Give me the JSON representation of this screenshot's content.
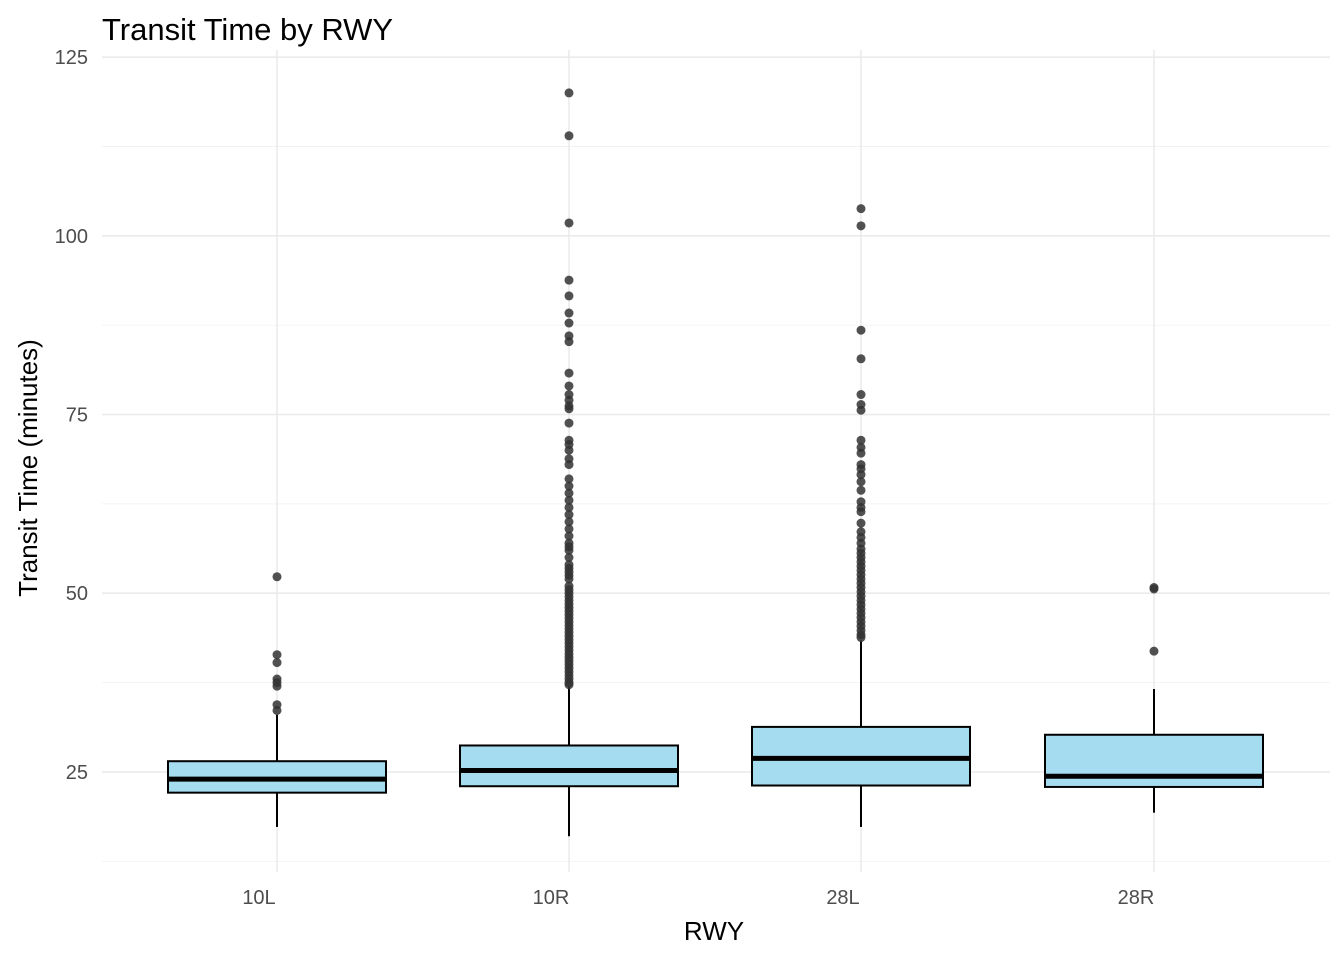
{
  "chart_data": {
    "type": "box",
    "title": "Transit Time by RWY",
    "xlabel": "RWY",
    "ylabel": "Transit Time (minutes)",
    "categories": [
      "10L",
      "10R",
      "28L",
      "28R"
    ],
    "ylim": [
      11,
      126
    ],
    "yticks": [
      25,
      50,
      75,
      100,
      125
    ],
    "grid": true,
    "box_fill": "#a6dcf0",
    "outlier_color": "#333333",
    "boxes": [
      {
        "category": "10L",
        "whisker_low": 17.3,
        "q1": 22.1,
        "median": 24.0,
        "q3": 26.5,
        "whisker_high": 33.0,
        "outliers": [
          52.3,
          41.4,
          40.3,
          38.0,
          37.5,
          37.0,
          34.4,
          33.6
        ]
      },
      {
        "category": "10R",
        "whisker_low": 16.0,
        "q1": 23.0,
        "median": 25.2,
        "q3": 28.7,
        "whisker_high": 37.0,
        "outliers": [
          120.0,
          114.0,
          101.8,
          93.8,
          91.6,
          89.2,
          87.8,
          86.0,
          85.2,
          80.8,
          79.0,
          77.8,
          77.0,
          76.2,
          75.8,
          73.8,
          71.4,
          70.8,
          70.0,
          68.8,
          68.0,
          66.0,
          65.0,
          64.0,
          63.0,
          62.0,
          61.0,
          60.0,
          59.0,
          58.0,
          57.0,
          56.5,
          56.0,
          55.0,
          54.0,
          53.5,
          53.0,
          52.5,
          52.0,
          51.0,
          50.5,
          50.0,
          49.5,
          49.0,
          48.5,
          48.0,
          47.5,
          47.0,
          46.5,
          46.0,
          45.5,
          45.0,
          44.5,
          44.0,
          43.5,
          43.0,
          42.5,
          42.0,
          41.5,
          41.0,
          40.5,
          40.0,
          39.5,
          39.0,
          38.5,
          38.0,
          37.5,
          37.2
        ]
      },
      {
        "category": "28L",
        "whisker_low": 17.3,
        "q1": 23.1,
        "median": 26.9,
        "q3": 31.3,
        "whisker_high": 43.4,
        "outliers": [
          103.8,
          101.4,
          86.8,
          82.8,
          77.8,
          76.4,
          75.6,
          71.4,
          70.4,
          69.6,
          68.0,
          67.4,
          66.6,
          65.6,
          64.4,
          62.8,
          62.0,
          61.4,
          59.8,
          58.6,
          57.8,
          57.0,
          56.2,
          55.6,
          55.0,
          54.4,
          53.8,
          53.2,
          52.6,
          52.0,
          51.4,
          50.8,
          50.2,
          49.6,
          49.0,
          48.4,
          47.8,
          47.2,
          46.6,
          46.0,
          45.4,
          44.8,
          44.2,
          43.8
        ]
      },
      {
        "category": "28R",
        "whisker_low": 19.3,
        "q1": 22.9,
        "median": 24.4,
        "q3": 30.2,
        "whisker_high": 36.6,
        "outliers": [
          50.8,
          50.6,
          41.9
        ]
      }
    ]
  }
}
